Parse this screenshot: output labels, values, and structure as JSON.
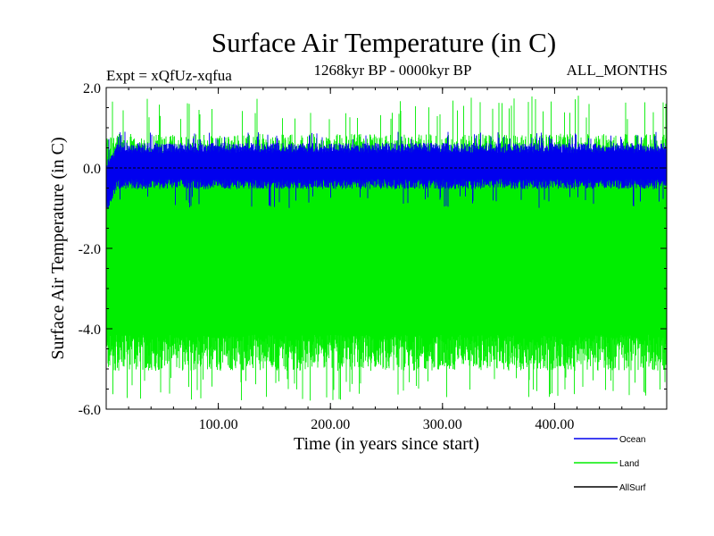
{
  "chart_data": {
    "type": "line",
    "title": "Surface Air Temperature (in C)",
    "subtitle": "1268kyr BP - 0000kyr BP",
    "expt_label": "Expt = xQfUz-xqfua",
    "months_label": "ALL_MONTHS",
    "xlabel": "Time (in years since start)",
    "ylabel": "Surface Air Temperature (in C)",
    "xlim": [
      0,
      500
    ],
    "ylim": [
      -6.0,
      2.0
    ],
    "x_ticks": [
      100,
      200,
      300,
      400
    ],
    "x_tick_labels": [
      "100.00",
      "200.00",
      "300.00",
      "400.00"
    ],
    "y_ticks": [
      2.0,
      0.0,
      -2.0,
      -4.0,
      -6.0
    ],
    "y_tick_labels": [
      "2.0",
      "0.0",
      "-2.0",
      "-4.0",
      "-6.0"
    ],
    "series": [
      {
        "name": "Land",
        "color": "#00ee00",
        "band_low": -5.8,
        "band_high": 1.8,
        "typical_low": -4.6,
        "typical_high": 0.5,
        "amplitude_note": "dense high-frequency noise"
      },
      {
        "name": "Ocean",
        "color": "#0000ee",
        "band_low": -1.0,
        "band_high": 0.9,
        "typical_low": -0.4,
        "typical_high": 0.5
      },
      {
        "name": "AllSurf",
        "color": "#000000",
        "value": 0.0
      }
    ],
    "legend": [
      {
        "name": "Ocean",
        "color": "#0000ee"
      },
      {
        "name": "Land",
        "color": "#00ee00"
      },
      {
        "name": "AllSurf",
        "color": "#000000"
      }
    ]
  }
}
